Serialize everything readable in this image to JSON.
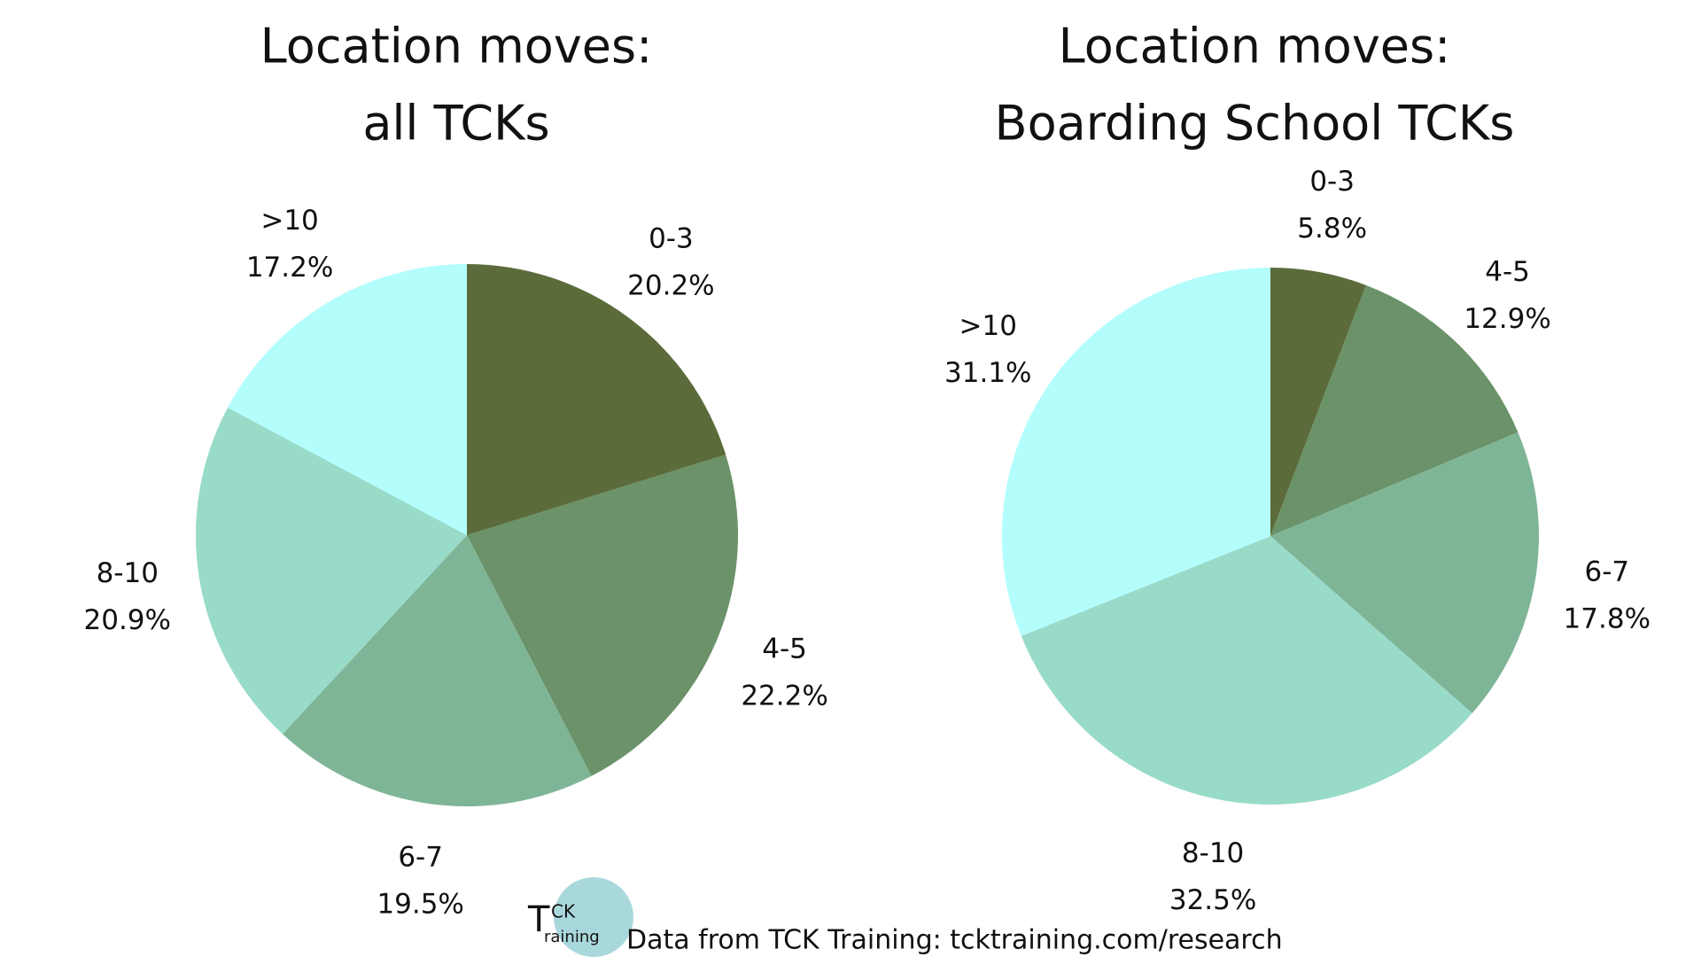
{
  "chart_data": [
    {
      "type": "pie",
      "title": [
        "Location moves:",
        "all TCKs"
      ],
      "categories": [
        "0-3",
        "4-5",
        "6-7",
        "8-10",
        ">10"
      ],
      "values": [
        20.2,
        22.2,
        19.5,
        20.9,
        17.2
      ],
      "value_labels": [
        "20.2%",
        "22.2%",
        "19.5%",
        "20.9%",
        "17.2%"
      ],
      "colors": [
        "#5b6b3a",
        "#6b9268",
        "#7fb597",
        "#99dbc9",
        "#b3fdfd"
      ]
    },
    {
      "type": "pie",
      "title": [
        "Location moves:",
        "Boarding School TCKs"
      ],
      "categories": [
        "0-3",
        "4-5",
        "6-7",
        "8-10",
        ">10"
      ],
      "values": [
        5.8,
        12.9,
        17.8,
        32.5,
        31.1
      ],
      "value_labels": [
        "5.8%",
        "12.9%",
        "17.8%",
        "32.5%",
        "31.1%"
      ],
      "colors": [
        "#5b6b3a",
        "#6b9268",
        "#7fb597",
        "#99dbc9",
        "#b3fdfd"
      ]
    }
  ],
  "footer": {
    "logo": [
      "T",
      "CK",
      "raining"
    ],
    "source": "Data from TCK Training: tcktraining.com/research"
  }
}
